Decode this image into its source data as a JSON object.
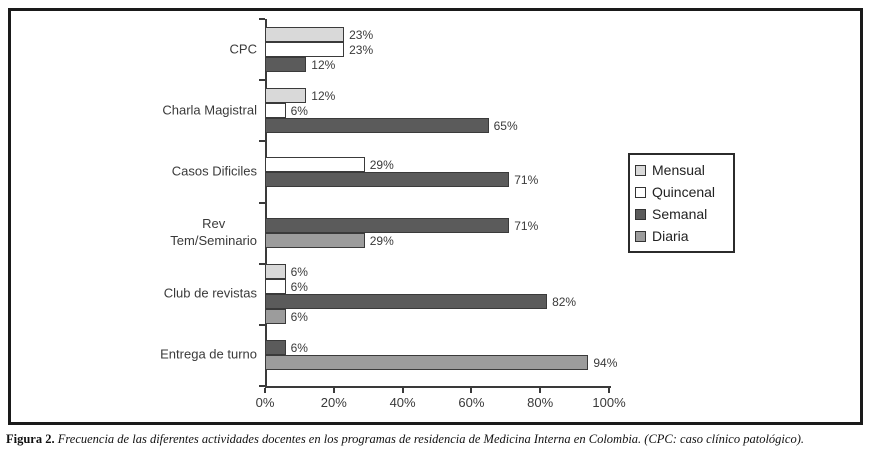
{
  "figure": {
    "caption_label": "Figura 2.",
    "caption_text": " Frecuencia de las diferentes actividades docentes en los programas de residencia de Medicina Interna en Colombia. (CPC: caso clínico patológico)."
  },
  "chart_data": {
    "type": "bar",
    "orientation": "horizontal",
    "title": "",
    "xlabel": "",
    "ylabel": "",
    "xlim": [
      0,
      100
    ],
    "x_ticks": [
      "0%",
      "20%",
      "40%",
      "60%",
      "80%",
      "100%"
    ],
    "grid": false,
    "data_labels": true,
    "data_label_format": "{v}%",
    "legend_position": "right",
    "legend_entries": [
      "Mensual",
      "Quincenal",
      "Semanal",
      "Diaria"
    ],
    "categories": [
      "CPC",
      "Charla Magistral",
      "Casos Dificiles",
      "Rev Tem/Seminario",
      "Club de revistas",
      "Entrega de turno"
    ],
    "category_labels_display": [
      "CPC",
      "Charla Magistral",
      "Casos Dificiles",
      "Rev\nTem/Seminario",
      "Club de revistas",
      "Entrega de turno"
    ],
    "series": [
      {
        "name": "Mensual",
        "color": "#d9d9d9",
        "values": [
          23,
          12,
          0,
          0,
          6,
          0
        ]
      },
      {
        "name": "Quincenal",
        "color": "#ffffff",
        "values": [
          23,
          6,
          29,
          0,
          6,
          0
        ]
      },
      {
        "name": "Semanal",
        "color": "#5b5b5b",
        "values": [
          12,
          65,
          71,
          71,
          82,
          6
        ]
      },
      {
        "name": "Diaria",
        "color": "#9c9c9c",
        "values": [
          0,
          0,
          0,
          29,
          6,
          94
        ]
      }
    ]
  },
  "style_colors": {
    "axis": "#3a3a3a",
    "bar_border": "#3a3a3a",
    "text": "#3a3a3a",
    "figure_border": "#1a1a1a",
    "background": "#ffffff"
  }
}
